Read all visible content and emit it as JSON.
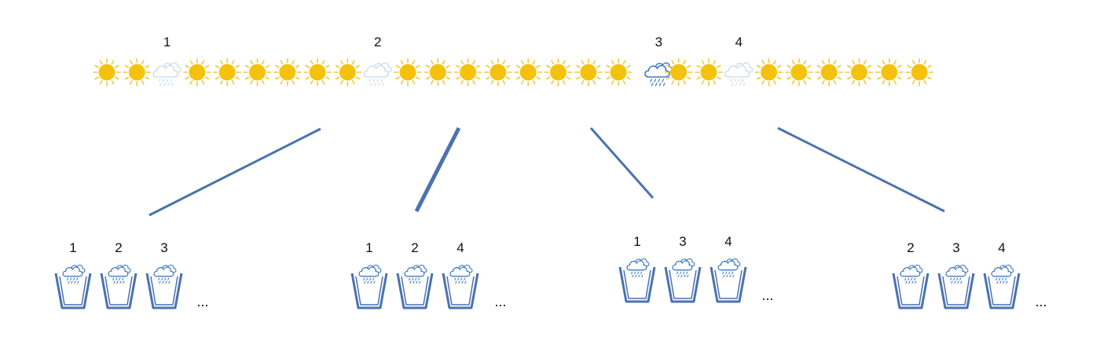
{
  "sequence": {
    "days": [
      "sun",
      "sun",
      "faded-rain",
      "sun",
      "sun",
      "sun",
      "sun",
      "sun",
      "sun",
      "faded-rain",
      "sun",
      "sun",
      "sun",
      "sun",
      "sun",
      "sun",
      "sun",
      "sun",
      "rain",
      "sun",
      "sun",
      "faded-rain",
      "sun",
      "sun",
      "sun",
      "sun",
      "sun",
      "sun"
    ],
    "labels": [
      {
        "text": "1",
        "day": 2
      },
      {
        "text": "2",
        "day": 9
      },
      {
        "text": "3",
        "day": 18
      },
      {
        "text": "4",
        "day": 21
      }
    ]
  },
  "groups": [
    {
      "labels": [
        "1",
        "2",
        "3"
      ],
      "ellipsis": "..."
    },
    {
      "labels": [
        "1",
        "2",
        "4"
      ],
      "ellipsis": "..."
    },
    {
      "labels": [
        "1",
        "3",
        "4"
      ],
      "ellipsis": "..."
    },
    {
      "labels": [
        "2",
        "3",
        "4"
      ],
      "ellipsis": "..."
    }
  ],
  "colors": {
    "sun": "#f4c20d",
    "sun_ray": "#f2c83a",
    "rain_cloud": "#3f7bbf",
    "faded_cloud": "#cfe0ef",
    "connector": "#4a72b0",
    "cup": "#4a72b0"
  }
}
